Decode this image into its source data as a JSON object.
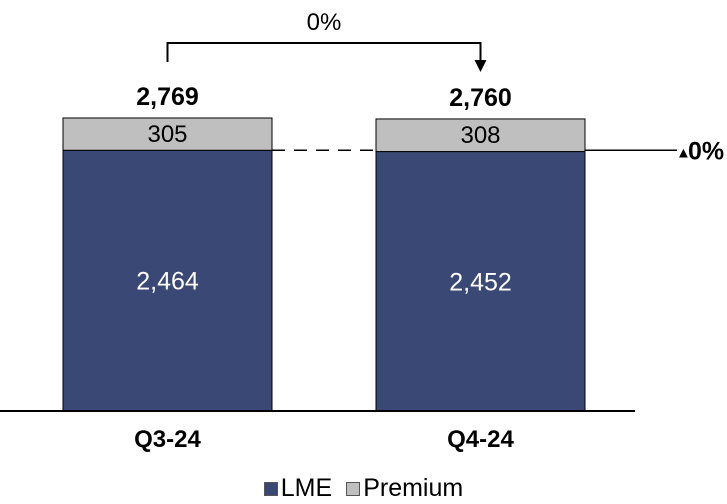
{
  "chart_data": {
    "type": "bar",
    "stacked": true,
    "categories": [
      "Q3-24",
      "Q4-24"
    ],
    "series": [
      {
        "name": "LME",
        "values": [
          2464,
          2452
        ],
        "labels": [
          "2,464",
          "2,452"
        ]
      },
      {
        "name": "Premium",
        "values": [
          305,
          308
        ],
        "labels": [
          "305",
          "308"
        ]
      }
    ],
    "totals": [
      2769,
      2760
    ],
    "total_labels": [
      "2,769",
      "2,760"
    ],
    "ylim": [
      0,
      2769
    ],
    "grid": false,
    "legend_position": "bottom",
    "annotations": {
      "total_change": "0%",
      "premium_change": "0%",
      "premium_change_marker": "▲"
    }
  },
  "colors": {
    "lme": "#3a4875",
    "premium": "#bfbfbf",
    "axis": "#000000",
    "lme_text": "#ffffff",
    "premium_text": "#000000"
  }
}
